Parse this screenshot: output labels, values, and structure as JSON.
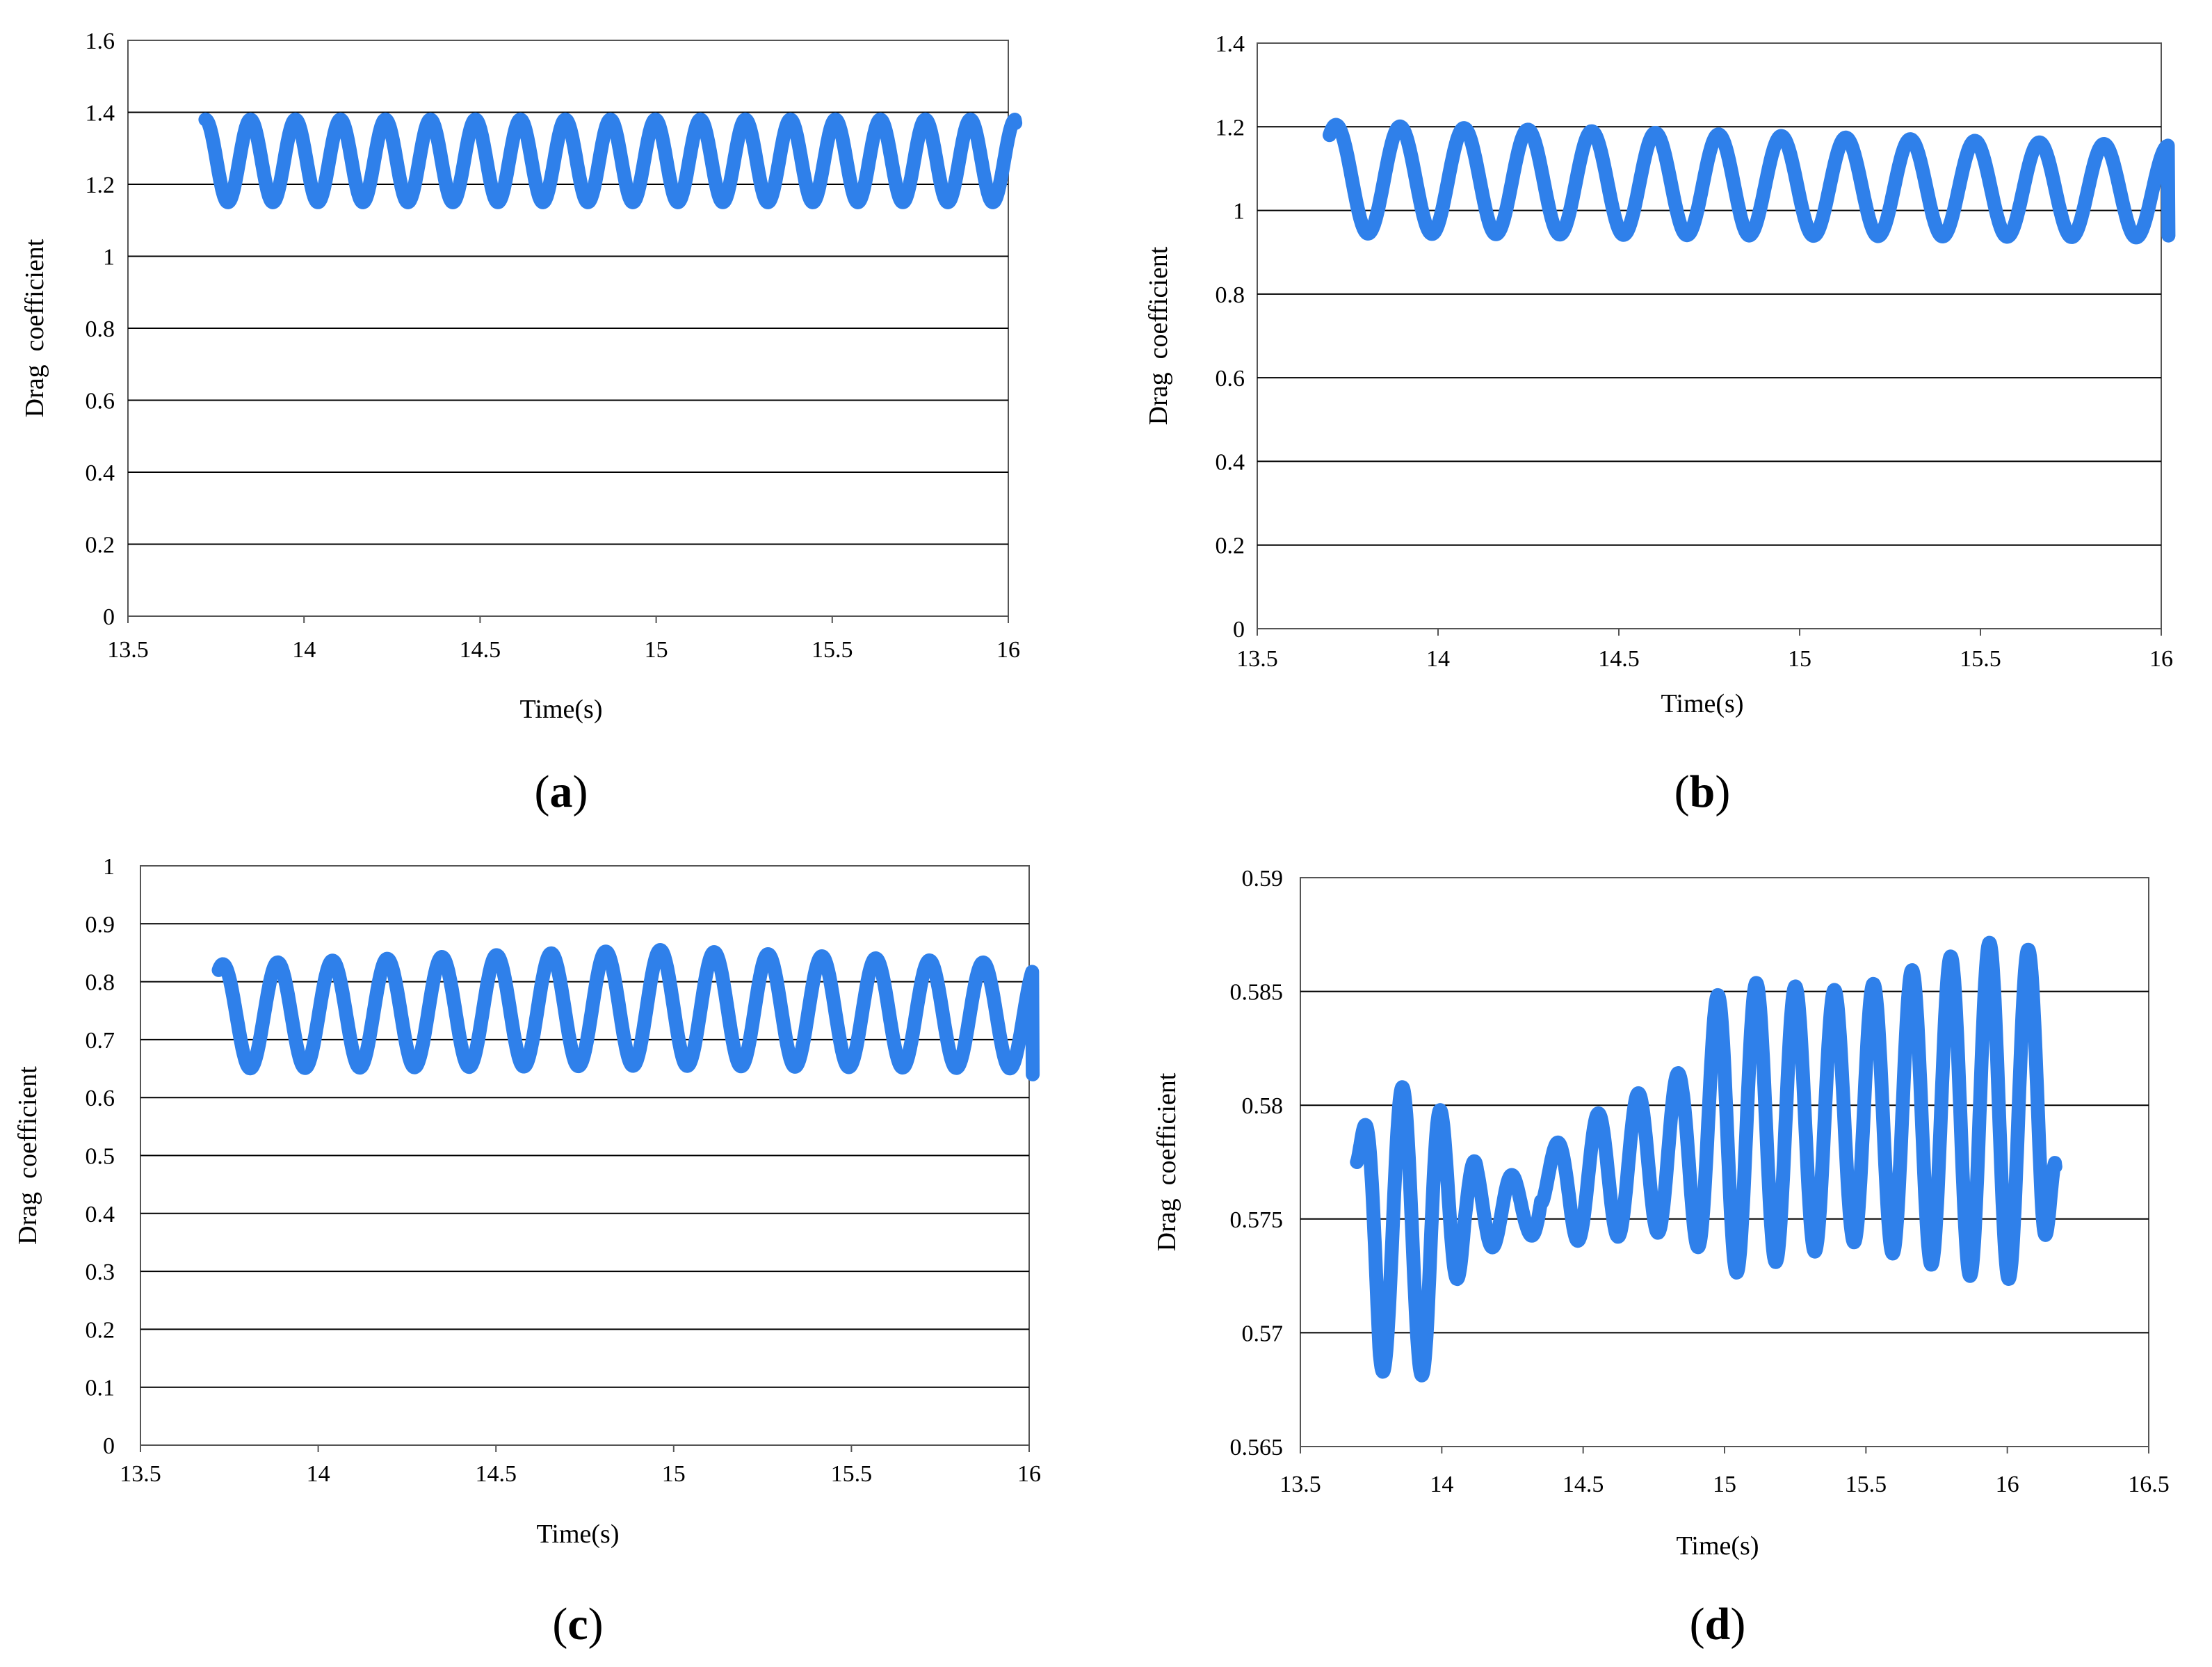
{
  "chart_data": [
    {
      "panel_label": "a",
      "type": "line",
      "xlabel": "Time(s)",
      "ylabel": "Drag  coefficient",
      "xlim": [
        13.5,
        16
      ],
      "ylim": [
        0,
        1.6
      ],
      "x_ticks": [
        "13.5",
        "14",
        "14.5",
        "15",
        "15.5",
        "16"
      ],
      "y_ticks": [
        "0",
        "0.2",
        "0.4",
        "0.6",
        "0.8",
        "1",
        "1.2",
        "1.4",
        "1.6"
      ],
      "grid": "horizontal",
      "color": "#2f80ea",
      "series": [
        {
          "x_start": 13.72,
          "x_end": 16.02,
          "cycles": 18,
          "segments": [
            {
              "x": 13.72,
              "center": 1.265,
              "amplitude": 0.115
            },
            {
              "x": 16.02,
              "center": 1.265,
              "amplitude": 0.115
            }
          ],
          "start_value": 1.38,
          "end_value": 1.37
        }
      ]
    },
    {
      "panel_label": "b",
      "type": "line",
      "xlabel": "Time(s)",
      "ylabel": "Drag  coefficient",
      "xlim": [
        13.5,
        16
      ],
      "ylim": [
        0,
        1.4
      ],
      "x_ticks": [
        "13.5",
        "14",
        "14.5",
        "15",
        "15.5",
        "16"
      ],
      "y_ticks": [
        "0",
        "0.2",
        "0.4",
        "0.6",
        "0.8",
        "1",
        "1.2",
        "1.4"
      ],
      "grid": "horizontal",
      "color": "#2f80ea",
      "series": [
        {
          "x_start": 13.7,
          "x_end": 16.02,
          "cycles": 13,
          "segments": [
            {
              "x": 13.7,
              "center": 1.075,
              "amplitude": 0.13
            },
            {
              "x": 16.02,
              "center": 1.045,
              "amplitude": 0.11
            }
          ],
          "start_value": 1.18,
          "end_value": 0.94
        }
      ]
    },
    {
      "panel_label": "c",
      "type": "line",
      "xlabel": "Time(s)",
      "ylabel": "Drag  coefficient",
      "xlim": [
        13.5,
        16
      ],
      "ylim": [
        0,
        1
      ],
      "x_ticks": [
        "13.5",
        "14",
        "14.5",
        "15",
        "15.5",
        "16"
      ],
      "y_ticks": [
        "0",
        "0.1",
        "0.2",
        "0.3",
        "0.4",
        "0.5",
        "0.6",
        "0.7",
        "0.8",
        "0.9",
        "1"
      ],
      "grid": "horizontal",
      "color": "#2f80ea",
      "series": [
        {
          "x_start": 13.72,
          "x_end": 16.01,
          "cycles": 15,
          "segments": [
            {
              "x": 13.72,
              "center": 0.74,
              "amplitude": 0.09
            },
            {
              "x": 14.95,
              "center": 0.755,
              "amplitude": 0.1
            },
            {
              "x": 16.01,
              "center": 0.74,
              "amplitude": 0.09
            }
          ],
          "start_value": 0.82,
          "end_value": 0.64
        }
      ]
    },
    {
      "panel_label": "d",
      "type": "line",
      "xlabel": "Time(s)",
      "ylabel": "Drag  coefficient",
      "xlim": [
        13.5,
        16.5
      ],
      "ylim": [
        0.565,
        0.59
      ],
      "x_ticks": [
        "13.5",
        "14",
        "14.5",
        "15",
        "15.5",
        "16",
        "16.5"
      ],
      "y_ticks": [
        "0.565",
        "0.57",
        "0.575",
        "0.58",
        "0.585",
        "0.59"
      ],
      "grid": "horizontal",
      "color": "#2f80ea",
      "series": [
        {
          "x_start": 13.7,
          "x_end": 16.17,
          "cycles": 18,
          "segments": [
            {
              "x": 13.7,
              "center": 0.5775,
              "amplitude": 0.0008
            },
            {
              "x": 13.78,
              "center": 0.5745,
              "amplitude": 0.0062
            },
            {
              "x": 13.95,
              "center": 0.5745,
              "amplitude": 0.0064
            },
            {
              "x": 14.08,
              "center": 0.5755,
              "amplitude": 0.0022
            },
            {
              "x": 14.3,
              "center": 0.5755,
              "amplitude": 0.0012
            },
            {
              "x": 14.45,
              "center": 0.5765,
              "amplitude": 0.0025
            },
            {
              "x": 14.85,
              "center": 0.578,
              "amplitude": 0.0035
            },
            {
              "x": 15.0,
              "center": 0.579,
              "amplitude": 0.0065
            },
            {
              "x": 15.45,
              "center": 0.5795,
              "amplitude": 0.0055
            },
            {
              "x": 15.95,
              "center": 0.5797,
              "amplitude": 0.0075
            },
            {
              "x": 16.12,
              "center": 0.5797,
              "amplitude": 0.007
            },
            {
              "x": 16.17,
              "center": 0.5773,
              "amplitude": 0.0002
            }
          ],
          "start_value": 0.5775,
          "end_value": 0.5773
        }
      ]
    }
  ]
}
